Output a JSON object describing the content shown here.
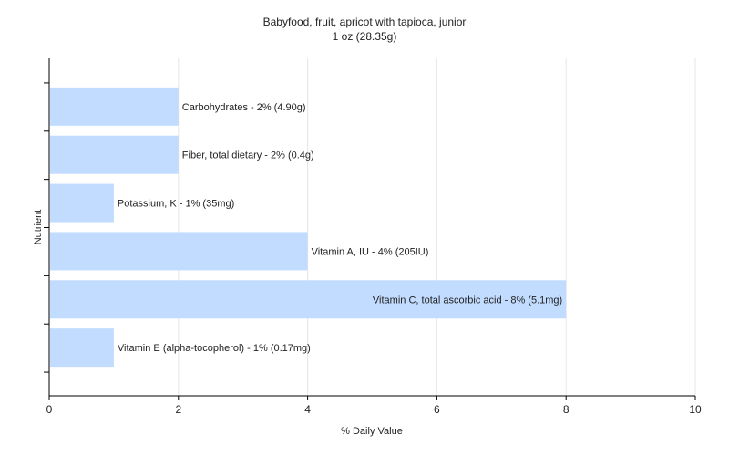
{
  "chart_data": {
    "type": "bar",
    "orientation": "horizontal",
    "title": "Babyfood, fruit, apricot with tapioca, junior",
    "subtitle": "1 oz (28.35g)",
    "xlabel": "% Daily Value",
    "ylabel": "Nutrient",
    "xlim": [
      0,
      10
    ],
    "xticks": [
      0,
      2,
      4,
      6,
      8,
      10
    ],
    "grid": true,
    "bar_color": "#c2dcff",
    "categories": [
      "Carbohydrates",
      "Fiber, total dietary",
      "Potassium, K",
      "Vitamin A, IU",
      "Vitamin C, total ascorbic acid",
      "Vitamin E (alpha-tocopherol)"
    ],
    "values": [
      2,
      2,
      1,
      4,
      8,
      1
    ],
    "labels": [
      "Carbohydrates - 2% (4.90g)",
      "Fiber, total dietary - 2% (0.4g)",
      "Potassium, K - 1% (35mg)",
      "Vitamin A, IU - 4% (205IU)",
      "Vitamin C, total ascorbic acid - 8% (5.1mg)",
      "Vitamin E (alpha-tocopherol) - 1% (0.17mg)"
    ]
  }
}
